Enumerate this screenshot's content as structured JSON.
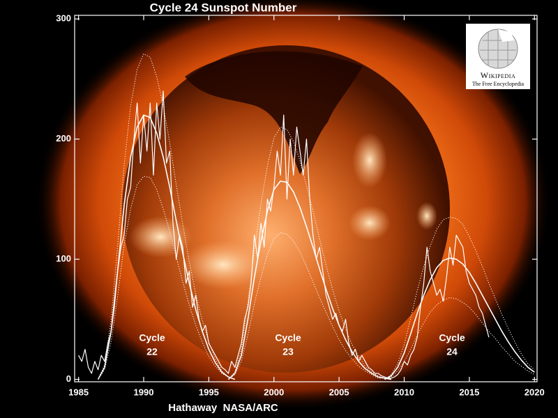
{
  "chart_data": {
    "type": "line",
    "title": "Cycle 24 Sunspot Number",
    "x_label": "Hathaway  NASA/ARC",
    "xlim": [
      1984.7,
      2020.2
    ],
    "ylim": [
      -2,
      303
    ],
    "xticks": [
      1985,
      1990,
      1995,
      2000,
      2005,
      2010,
      2015,
      2020
    ],
    "yticks": [
      0,
      100,
      200,
      300
    ],
    "annotations": [
      [
        "Cycle",
        "22"
      ],
      [
        "Cycle",
        "23"
      ],
      [
        "Cycle",
        "24"
      ]
    ],
    "logo": {
      "name": "Wikipedia",
      "tagline": "The Free Encyclopedia"
    },
    "series": [
      {
        "color": "#ffffff",
        "style": "solid",
        "width": 1.2,
        "x": [
          1985,
          1985.25,
          1985.5,
          1985.75,
          1986,
          1986.25,
          1986.5,
          1986.75,
          1987,
          1987.25,
          1987.5,
          1987.75,
          1988,
          1988.25,
          1988.5,
          1988.75,
          1989,
          1989.25,
          1989.5,
          1989.75,
          1990,
          1990.25,
          1990.5,
          1990.75,
          1991,
          1991.25,
          1991.5,
          1991.75,
          1992,
          1992.25,
          1992.5,
          1992.75,
          1993,
          1993.25,
          1993.5,
          1993.75,
          1994,
          1994.25,
          1994.5,
          1994.75,
          1995,
          1995.25,
          1995.5,
          1995.75,
          1996,
          1996.25,
          1996.5,
          1996.75,
          1997,
          1997.25,
          1997.5,
          1997.75,
          1998,
          1998.25,
          1998.5,
          1998.75,
          1999,
          1999.25,
          1999.5,
          1999.75,
          2000,
          2000.25,
          2000.5,
          2000.75,
          2001,
          2001.25,
          2001.5,
          2001.75,
          2002,
          2002.25,
          2002.5,
          2002.75,
          2003,
          2003.25,
          2003.5,
          2003.75,
          2004,
          2004.25,
          2004.5,
          2004.75,
          2005,
          2005.25,
          2005.5,
          2005.75,
          2006,
          2006.25,
          2006.5,
          2006.75,
          2007,
          2007.25,
          2007.5,
          2007.75,
          2008,
          2008.25,
          2008.5,
          2008.75,
          2009,
          2009.25,
          2009.5,
          2009.75,
          2010,
          2010.25,
          2010.5,
          2010.75,
          2011,
          2011.25,
          2011.5,
          2011.75,
          2012,
          2012.25,
          2012.5,
          2012.75,
          2013,
          2013.25,
          2013.5,
          2013.75,
          2014,
          2014.25,
          2014.5,
          2014.75,
          2015,
          2015.25,
          2015.5,
          2015.75,
          2016,
          2016.25,
          2016.5
        ],
        "values": [
          20,
          15,
          25,
          10,
          5,
          15,
          8,
          20,
          15,
          30,
          40,
          60,
          90,
          110,
          120,
          150,
          160,
          200,
          230,
          180,
          220,
          190,
          230,
          170,
          230,
          200,
          240,
          180,
          190,
          130,
          100,
          120,
          110,
          80,
          90,
          60,
          70,
          50,
          40,
          45,
          30,
          25,
          20,
          15,
          10,
          8,
          5,
          15,
          10,
          20,
          30,
          50,
          60,
          80,
          120,
          100,
          130,
          110,
          150,
          140,
          160,
          190,
          170,
          220,
          150,
          200,
          170,
          210,
          190,
          170,
          200,
          150,
          120,
          100,
          110,
          90,
          70,
          60,
          50,
          55,
          45,
          40,
          50,
          30,
          20,
          25,
          15,
          20,
          15,
          10,
          8,
          5,
          5,
          3,
          2,
          1,
          1,
          2,
          4,
          8,
          15,
          12,
          20,
          25,
          35,
          60,
          80,
          110,
          90,
          80,
          70,
          75,
          65,
          85,
          110,
          95,
          120,
          115,
          110,
          90,
          80,
          75,
          70,
          60,
          55,
          45,
          35
        ]
      },
      {
        "color": "#ffffff",
        "style": "solid",
        "width": 1.6,
        "x": [
          1986.5,
          1987,
          1987.5,
          1988,
          1988.5,
          1989,
          1989.5,
          1990,
          1990.5,
          1991,
          1991.5,
          1992,
          1992.5,
          1993,
          1993.5,
          1994,
          1994.5,
          1995,
          1995.5,
          1996,
          1996.5,
          1997
        ],
        "values": [
          0,
          10,
          40,
          90,
          145,
          185,
          210,
          220,
          218,
          205,
          185,
          160,
          132,
          105,
          80,
          58,
          40,
          25,
          14,
          6,
          2,
          0
        ]
      },
      {
        "color": "#ffffff",
        "style": "dotted",
        "width": 1,
        "x": [
          1986.5,
          1987,
          1987.5,
          1988,
          1988.5,
          1989,
          1989.5,
          1990,
          1990.5,
          1991,
          1991.5,
          1992,
          1992.5,
          1993,
          1993.5,
          1994,
          1994.5,
          1995,
          1995.5,
          1996,
          1996.5,
          1997
        ],
        "values": [
          0,
          12,
          49,
          111,
          178,
          228,
          258,
          271,
          268,
          252,
          228,
          197,
          162,
          129,
          98,
          71,
          49,
          31,
          17,
          7,
          2,
          0
        ]
      },
      {
        "color": "#ffffff",
        "style": "dotted",
        "width": 1,
        "x": [
          1986.5,
          1987,
          1987.5,
          1988,
          1988.5,
          1989,
          1989.5,
          1990,
          1990.5,
          1991,
          1991.5,
          1992,
          1992.5,
          1993,
          1993.5,
          1994,
          1994.5,
          1995,
          1995.5,
          1996,
          1996.5,
          1997
        ],
        "values": [
          0,
          8,
          31,
          69,
          112,
          142,
          162,
          169,
          168,
          158,
          142,
          123,
          102,
          81,
          62,
          45,
          31,
          19,
          11,
          5,
          2,
          0
        ]
      },
      {
        "color": "#ffffff",
        "style": "solid",
        "width": 1.6,
        "x": [
          1996.5,
          1997,
          1997.5,
          1998,
          1998.5,
          1999,
          1999.5,
          2000,
          2000.5,
          2001,
          2001.5,
          2002,
          2002.5,
          2003,
          2003.5,
          2004,
          2004.5,
          2005,
          2005.5,
          2006,
          2006.5,
          2007,
          2007.5,
          2008,
          2008.5,
          2009
        ],
        "values": [
          0,
          5,
          20,
          50,
          85,
          115,
          140,
          158,
          165,
          164,
          156,
          143,
          127,
          110,
          92,
          75,
          59,
          45,
          33,
          23,
          15,
          9,
          5,
          2,
          1,
          0
        ]
      },
      {
        "color": "#ffffff",
        "style": "dotted",
        "width": 1,
        "x": [
          1996.5,
          1997,
          1997.5,
          1998,
          1998.5,
          1999,
          1999.5,
          2000,
          2000.5,
          2001,
          2001.5,
          2002,
          2002.5,
          2003,
          2003.5,
          2004,
          2004.5,
          2005,
          2005.5,
          2006,
          2006.5,
          2007,
          2007.5,
          2008,
          2008.5,
          2009
        ],
        "values": [
          0,
          6,
          25,
          64,
          108,
          146,
          178,
          201,
          210,
          208,
          198,
          182,
          161,
          140,
          117,
          95,
          75,
          57,
          42,
          29,
          19,
          11,
          6,
          3,
          1,
          0
        ]
      },
      {
        "color": "#ffffff",
        "style": "dotted",
        "width": 1,
        "x": [
          1996.5,
          1997,
          1997.5,
          1998,
          1998.5,
          1999,
          1999.5,
          2000,
          2000.5,
          2001,
          2001.5,
          2002,
          2002.5,
          2003,
          2003.5,
          2004,
          2004.5,
          2005,
          2005.5,
          2006,
          2006.5,
          2007,
          2007.5,
          2008,
          2008.5,
          2009
        ],
        "values": [
          0,
          4,
          15,
          37,
          63,
          85,
          104,
          117,
          122,
          121,
          115,
          106,
          94,
          81,
          68,
          56,
          44,
          33,
          24,
          17,
          11,
          7,
          4,
          1,
          1,
          0
        ]
      },
      {
        "color": "#ffffff",
        "style": "solid",
        "width": 1.6,
        "x": [
          2008.5,
          2009,
          2009.5,
          2010,
          2010.5,
          2011,
          2011.5,
          2012,
          2012.5,
          2013,
          2013.5,
          2014,
          2014.5,
          2015,
          2015.5,
          2016,
          2016.5,
          2017,
          2017.5,
          2018,
          2018.5,
          2019,
          2019.5,
          2020
        ],
        "values": [
          0,
          3,
          10,
          22,
          38,
          55,
          70,
          83,
          93,
          99,
          101,
          100,
          96,
          89,
          80,
          70,
          60,
          50,
          40,
          31,
          23,
          16,
          10,
          6
        ]
      },
      {
        "color": "#ffffff",
        "style": "dotted",
        "width": 1,
        "x": [
          2008.5,
          2009,
          2009.5,
          2010,
          2010.5,
          2011,
          2011.5,
          2012,
          2012.5,
          2013,
          2013.5,
          2014,
          2014.5,
          2015,
          2015.5,
          2016,
          2016.5,
          2017,
          2017.5,
          2018,
          2018.5,
          2019,
          2019.5,
          2020
        ],
        "values": [
          0,
          4,
          13,
          29,
          51,
          74,
          94,
          111,
          125,
          133,
          135,
          134,
          129,
          119,
          107,
          94,
          80,
          67,
          54,
          42,
          31,
          21,
          13,
          8
        ]
      },
      {
        "color": "#ffffff",
        "style": "dotted",
        "width": 1,
        "x": [
          2008.5,
          2009,
          2009.5,
          2010,
          2010.5,
          2011,
          2011.5,
          2012,
          2012.5,
          2013,
          2013.5,
          2014,
          2014.5,
          2015,
          2015.5,
          2016,
          2016.5,
          2017,
          2017.5,
          2018,
          2018.5,
          2019,
          2019.5,
          2020
        ],
        "values": [
          0,
          2,
          7,
          15,
          25,
          37,
          47,
          56,
          62,
          66,
          68,
          67,
          64,
          60,
          54,
          47,
          40,
          34,
          27,
          21,
          15,
          11,
          7,
          4
        ]
      }
    ]
  }
}
